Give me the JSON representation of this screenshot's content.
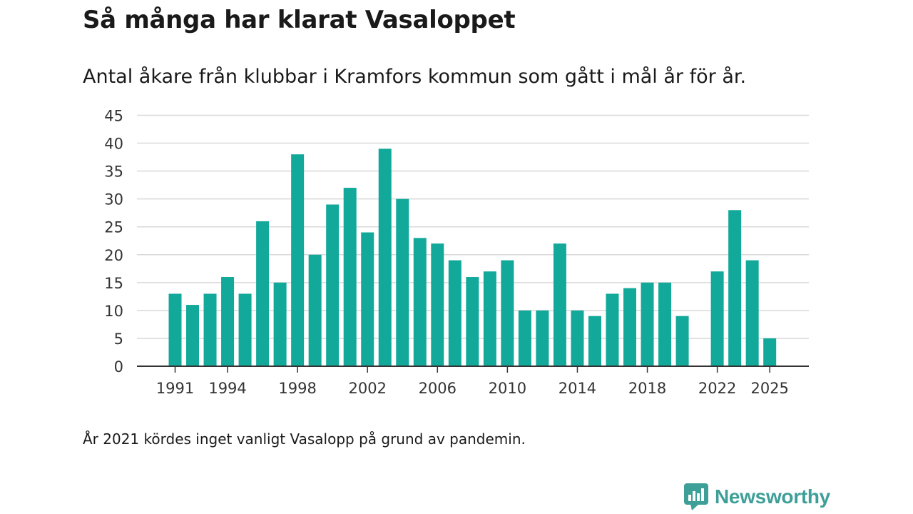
{
  "header": {
    "title": "Så många har klarat Vasaloppet",
    "subtitle": "Antal åkare från klubbar i Kramfors kommun som gått i mål år för år."
  },
  "footer": {
    "note": "År 2021 kördes inget vanligt Vasalopp på grund av pandemin.",
    "brand": "Newsworthy"
  },
  "colors": {
    "bar": "#12a99b",
    "brand": "#3e9f98",
    "gridline": "#d9d9d9",
    "axis": "#333333"
  },
  "icons": {
    "logo": "bar-chart-icon"
  },
  "chart_data": {
    "type": "bar",
    "title": "Så många har klarat Vasaloppet",
    "subtitle": "Antal åkare från klubbar i Kramfors kommun som gått i mål år för år.",
    "xlabel": "",
    "ylabel": "",
    "x": [
      1991,
      1992,
      1993,
      1994,
      1995,
      1996,
      1997,
      1998,
      1999,
      2000,
      2001,
      2002,
      2003,
      2004,
      2005,
      2006,
      2007,
      2008,
      2009,
      2010,
      2011,
      2012,
      2013,
      2014,
      2015,
      2016,
      2017,
      2018,
      2019,
      2020,
      2021,
      2022,
      2023,
      2024,
      2025
    ],
    "values": [
      13,
      11,
      13,
      16,
      13,
      26,
      15,
      38,
      20,
      29,
      32,
      24,
      39,
      30,
      23,
      22,
      19,
      16,
      17,
      19,
      10,
      10,
      22,
      10,
      9,
      13,
      14,
      15,
      15,
      9,
      null,
      17,
      28,
      19,
      5
    ],
    "xticks": [
      1991,
      1994,
      1998,
      2002,
      2006,
      2010,
      2014,
      2018,
      2022,
      2025
    ],
    "yticks": [
      0,
      5,
      10,
      15,
      20,
      25,
      30,
      35,
      40,
      45
    ],
    "ylim": [
      0,
      45
    ],
    "grid": true,
    "legend": "none"
  }
}
